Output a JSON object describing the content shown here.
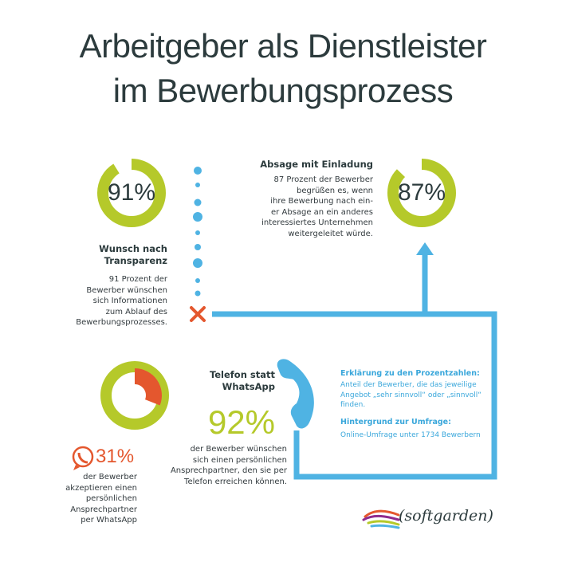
{
  "title": {
    "line1": "Arbeitgeber als Dienstleister",
    "line2": "im Bewerbungsprozess"
  },
  "stat_transparency": {
    "percent_label": "91%",
    "value": 0.91,
    "heading_line1": "Wunsch nach",
    "heading_line2": "Transparenz",
    "body_lines": [
      "91 Prozent der",
      "Bewerber wünschen",
      "sich Informationen",
      "zum Ablauf des",
      "Bewerbungsprozesses."
    ]
  },
  "stat_rejection": {
    "percent_label": "87%",
    "value": 0.87,
    "heading": "Absage mit Einladung",
    "body_lines": [
      "87 Prozent der Bewerber",
      "begrüßen es, wenn",
      "ihre Bewerbung nach ein-",
      "er Absage an ein anderes",
      "interessiertes Unternehmen",
      "weitergeleitet würde."
    ]
  },
  "stat_whatsapp": {
    "percent_label": "31%",
    "value": 0.31,
    "body_lines": [
      "der Bewerber",
      "akzeptieren einen",
      "persönlichen",
      "Ansprechpartner",
      "per WhatsApp"
    ]
  },
  "stat_phone": {
    "heading_line1": "Telefon statt",
    "heading_line2": "WhatsApp",
    "percent_label": "92%",
    "value": 0.92,
    "body_lines": [
      "der Bewerber wünschen",
      "sich einen persönlichen",
      "Ansprechpartner, den sie per",
      "Telefon erreichen können."
    ]
  },
  "info": {
    "explain_heading": "Erklärung zu den Prozentzahlen:",
    "explain_body_lines": [
      "Anteil der Bewerber, die das jeweilige",
      "Angebot „sehr sinnvoll“ oder „sinnvoll“",
      "finden."
    ],
    "survey_heading": "Hintergrund zur Umfrage:",
    "survey_body": "Online-Umfrage unter 1734 Bewerbern"
  },
  "logo": {
    "text": "softgarden"
  },
  "colors": {
    "green": "#b5c92a",
    "orange": "#e4572e",
    "blue": "#4fb3e3",
    "dark": "#2c3b3d"
  },
  "icons": [
    "whatsapp-icon",
    "phone-icon",
    "cross-icon",
    "arrow-up-icon"
  ]
}
